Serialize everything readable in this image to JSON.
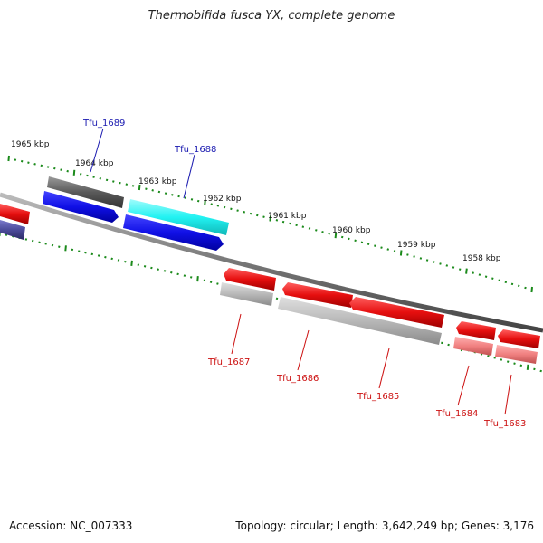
{
  "title": "Thermobifida fusca YX, complete genome",
  "footer": {
    "accession": "Accession: NC_007333",
    "summary": "Topology: circular; Length: 3,642,249 bp; Genes: 3,176"
  },
  "colors": {
    "forward_gene": "#1010e6",
    "reverse_gene": "#e60f0f",
    "cds_selected": "#22f2f2",
    "track_line": "#777777",
    "ticks": "#1b8a1b",
    "forward_label": "#1a1ab0",
    "reverse_label": "#cc1111"
  },
  "kbp_ticks": [
    "1965 kbp",
    "1964 kbp",
    "1963 kbp",
    "1962 kbp",
    "1961 kbp",
    "1960 kbp",
    "1959 kbp",
    "1958 kbp"
  ],
  "genes_forward": [
    {
      "label": "Tfu_1689"
    },
    {
      "label": "Tfu_1688"
    }
  ],
  "genes_reverse": [
    {
      "label": "Tfu_1687"
    },
    {
      "label": "Tfu_1686"
    },
    {
      "label": "Tfu_1685"
    },
    {
      "label": "Tfu_1684"
    },
    {
      "label": "Tfu_1683"
    }
  ]
}
